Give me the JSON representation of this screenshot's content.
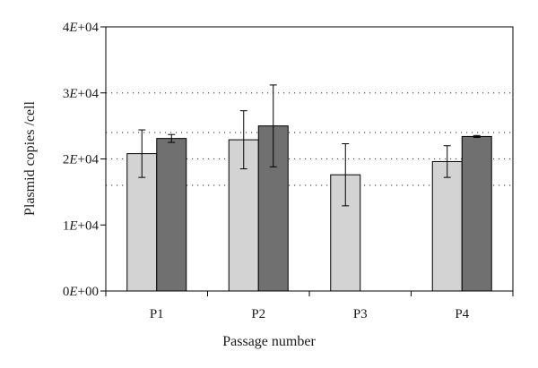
{
  "chart_data": {
    "type": "bar",
    "categories": [
      "P1",
      "P2",
      "P3",
      "P4"
    ],
    "series": [
      {
        "color": "#d3d3d3",
        "values": [
          20800,
          22900,
          17600,
          19600
        ],
        "errors": [
          3600,
          4400,
          4700,
          2400
        ]
      },
      {
        "color": "#707070",
        "values": [
          23100,
          25000,
          null,
          23400
        ],
        "errors": [
          600,
          6200,
          null,
          150
        ]
      }
    ],
    "title": "",
    "xlabel": "Passage number",
    "ylabel": "Plasmid copies /cell",
    "ylim": [
      0,
      40000
    ],
    "yticks": [
      {
        "value": 0,
        "mantissa": "0",
        "exp": "+00"
      },
      {
        "value": 10000,
        "mantissa": "1",
        "exp": "+04"
      },
      {
        "value": 20000,
        "mantissa": "2",
        "exp": "+04"
      },
      {
        "value": 30000,
        "mantissa": "3",
        "exp": "+04"
      },
      {
        "value": 40000,
        "mantissa": "4",
        "exp": "+04"
      }
    ],
    "gridlines": [
      16000,
      20000,
      24000,
      30000
    ],
    "grid": true,
    "legend": "none"
  }
}
